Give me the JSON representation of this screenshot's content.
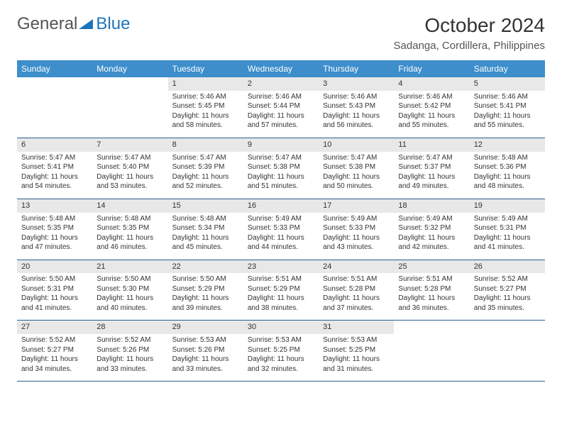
{
  "logo": {
    "text1": "General",
    "text2": "Blue",
    "mark_color": "#1f75bb"
  },
  "title": "October 2024",
  "location": "Sadanga, Cordillera, Philippines",
  "colors": {
    "header_bg": "#3d8ecb",
    "daynum_bg": "#e8e8e8",
    "row_border": "#2c5f8f"
  },
  "typography": {
    "title_fontsize": 28,
    "location_fontsize": 15,
    "dayheader_fontsize": 12,
    "daynum_fontsize": 11,
    "body_fontsize": 10
  },
  "day_headers": [
    "Sunday",
    "Monday",
    "Tuesday",
    "Wednesday",
    "Thursday",
    "Friday",
    "Saturday"
  ],
  "weeks": [
    [
      {
        "n": "",
        "lines": []
      },
      {
        "n": "",
        "lines": []
      },
      {
        "n": "1",
        "lines": [
          "Sunrise: 5:46 AM",
          "Sunset: 5:45 PM",
          "Daylight: 11 hours and 58 minutes."
        ]
      },
      {
        "n": "2",
        "lines": [
          "Sunrise: 5:46 AM",
          "Sunset: 5:44 PM",
          "Daylight: 11 hours and 57 minutes."
        ]
      },
      {
        "n": "3",
        "lines": [
          "Sunrise: 5:46 AM",
          "Sunset: 5:43 PM",
          "Daylight: 11 hours and 56 minutes."
        ]
      },
      {
        "n": "4",
        "lines": [
          "Sunrise: 5:46 AM",
          "Sunset: 5:42 PM",
          "Daylight: 11 hours and 55 minutes."
        ]
      },
      {
        "n": "5",
        "lines": [
          "Sunrise: 5:46 AM",
          "Sunset: 5:41 PM",
          "Daylight: 11 hours and 55 minutes."
        ]
      }
    ],
    [
      {
        "n": "6",
        "lines": [
          "Sunrise: 5:47 AM",
          "Sunset: 5:41 PM",
          "Daylight: 11 hours and 54 minutes."
        ]
      },
      {
        "n": "7",
        "lines": [
          "Sunrise: 5:47 AM",
          "Sunset: 5:40 PM",
          "Daylight: 11 hours and 53 minutes."
        ]
      },
      {
        "n": "8",
        "lines": [
          "Sunrise: 5:47 AM",
          "Sunset: 5:39 PM",
          "Daylight: 11 hours and 52 minutes."
        ]
      },
      {
        "n": "9",
        "lines": [
          "Sunrise: 5:47 AM",
          "Sunset: 5:38 PM",
          "Daylight: 11 hours and 51 minutes."
        ]
      },
      {
        "n": "10",
        "lines": [
          "Sunrise: 5:47 AM",
          "Sunset: 5:38 PM",
          "Daylight: 11 hours and 50 minutes."
        ]
      },
      {
        "n": "11",
        "lines": [
          "Sunrise: 5:47 AM",
          "Sunset: 5:37 PM",
          "Daylight: 11 hours and 49 minutes."
        ]
      },
      {
        "n": "12",
        "lines": [
          "Sunrise: 5:48 AM",
          "Sunset: 5:36 PM",
          "Daylight: 11 hours and 48 minutes."
        ]
      }
    ],
    [
      {
        "n": "13",
        "lines": [
          "Sunrise: 5:48 AM",
          "Sunset: 5:35 PM",
          "Daylight: 11 hours and 47 minutes."
        ]
      },
      {
        "n": "14",
        "lines": [
          "Sunrise: 5:48 AM",
          "Sunset: 5:35 PM",
          "Daylight: 11 hours and 46 minutes."
        ]
      },
      {
        "n": "15",
        "lines": [
          "Sunrise: 5:48 AM",
          "Sunset: 5:34 PM",
          "Daylight: 11 hours and 45 minutes."
        ]
      },
      {
        "n": "16",
        "lines": [
          "Sunrise: 5:49 AM",
          "Sunset: 5:33 PM",
          "Daylight: 11 hours and 44 minutes."
        ]
      },
      {
        "n": "17",
        "lines": [
          "Sunrise: 5:49 AM",
          "Sunset: 5:33 PM",
          "Daylight: 11 hours and 43 minutes."
        ]
      },
      {
        "n": "18",
        "lines": [
          "Sunrise: 5:49 AM",
          "Sunset: 5:32 PM",
          "Daylight: 11 hours and 42 minutes."
        ]
      },
      {
        "n": "19",
        "lines": [
          "Sunrise: 5:49 AM",
          "Sunset: 5:31 PM",
          "Daylight: 11 hours and 41 minutes."
        ]
      }
    ],
    [
      {
        "n": "20",
        "lines": [
          "Sunrise: 5:50 AM",
          "Sunset: 5:31 PM",
          "Daylight: 11 hours and 41 minutes."
        ]
      },
      {
        "n": "21",
        "lines": [
          "Sunrise: 5:50 AM",
          "Sunset: 5:30 PM",
          "Daylight: 11 hours and 40 minutes."
        ]
      },
      {
        "n": "22",
        "lines": [
          "Sunrise: 5:50 AM",
          "Sunset: 5:29 PM",
          "Daylight: 11 hours and 39 minutes."
        ]
      },
      {
        "n": "23",
        "lines": [
          "Sunrise: 5:51 AM",
          "Sunset: 5:29 PM",
          "Daylight: 11 hours and 38 minutes."
        ]
      },
      {
        "n": "24",
        "lines": [
          "Sunrise: 5:51 AM",
          "Sunset: 5:28 PM",
          "Daylight: 11 hours and 37 minutes."
        ]
      },
      {
        "n": "25",
        "lines": [
          "Sunrise: 5:51 AM",
          "Sunset: 5:28 PM",
          "Daylight: 11 hours and 36 minutes."
        ]
      },
      {
        "n": "26",
        "lines": [
          "Sunrise: 5:52 AM",
          "Sunset: 5:27 PM",
          "Daylight: 11 hours and 35 minutes."
        ]
      }
    ],
    [
      {
        "n": "27",
        "lines": [
          "Sunrise: 5:52 AM",
          "Sunset: 5:27 PM",
          "Daylight: 11 hours and 34 minutes."
        ]
      },
      {
        "n": "28",
        "lines": [
          "Sunrise: 5:52 AM",
          "Sunset: 5:26 PM",
          "Daylight: 11 hours and 33 minutes."
        ]
      },
      {
        "n": "29",
        "lines": [
          "Sunrise: 5:53 AM",
          "Sunset: 5:26 PM",
          "Daylight: 11 hours and 33 minutes."
        ]
      },
      {
        "n": "30",
        "lines": [
          "Sunrise: 5:53 AM",
          "Sunset: 5:25 PM",
          "Daylight: 11 hours and 32 minutes."
        ]
      },
      {
        "n": "31",
        "lines": [
          "Sunrise: 5:53 AM",
          "Sunset: 5:25 PM",
          "Daylight: 11 hours and 31 minutes."
        ]
      },
      {
        "n": "",
        "lines": []
      },
      {
        "n": "",
        "lines": []
      }
    ]
  ]
}
